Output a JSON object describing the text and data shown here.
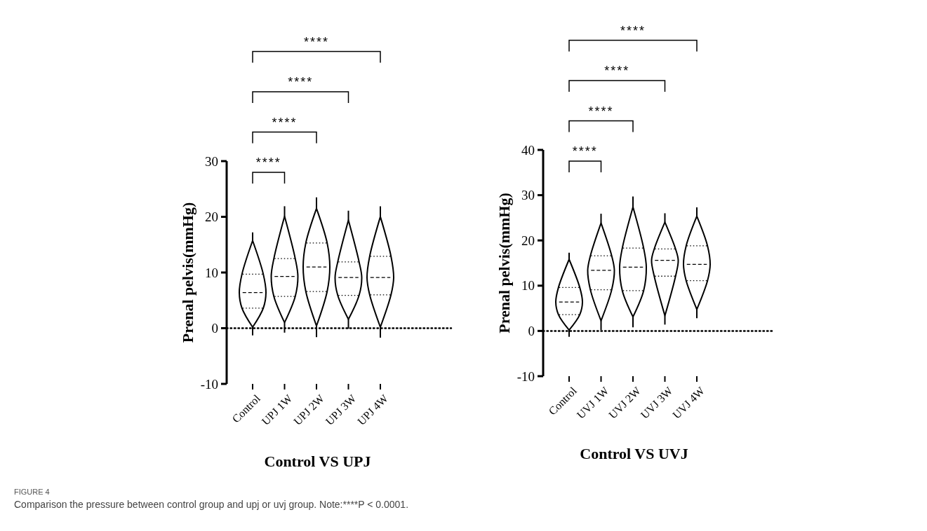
{
  "chart_data": [
    {
      "type": "box",
      "xlabel": "Control VS UPJ",
      "ylabel": "Prenal pelvis(mmHg)",
      "categories": [
        "Control",
        "UPJ 1W",
        "UPJ 2W",
        "UPJ 3W",
        "UPJ 4W"
      ],
      "boxes": [
        {
          "low": -1.3,
          "q1": 3.6,
          "median": 6.4,
          "q3": 9.7,
          "high": 17.2
        },
        {
          "low": -0.8,
          "q1": 5.7,
          "median": 9.3,
          "q3": 12.5,
          "high": 21.9
        },
        {
          "low": -1.6,
          "q1": 6.6,
          "median": 11.0,
          "q3": 15.3,
          "high": 23.5
        },
        {
          "low": -0.1,
          "q1": 5.9,
          "median": 9.1,
          "q3": 11.9,
          "high": 21.1
        },
        {
          "low": -1.7,
          "q1": 6.0,
          "median": 9.1,
          "q3": 12.9,
          "high": 21.9
        }
      ],
      "ylim": [
        -10,
        30
      ],
      "yticks": [
        -10,
        0,
        10,
        20,
        30
      ],
      "ref_lines": [
        {
          "axis": "y",
          "value": 0,
          "line_style": "dotted"
        }
      ],
      "annotations": [
        "****",
        "****",
        "****",
        "****",
        "FIGURE 4",
        "Comparison the pressure between control group and upj or uvj group. Note:****P < 0.0001."
      ]
    },
    {
      "type": "box",
      "xlabel": "Control VS UVJ",
      "ylabel": "Prenal pelvis(mmHg)",
      "categories": [
        "Control",
        "UVJ 1W",
        "UVJ 2W",
        "UVJ 3W",
        "UVJ 4W"
      ],
      "boxes": [
        {
          "low": -1.3,
          "q1": 3.6,
          "median": 6.4,
          "q3": 9.6,
          "high": 17.3
        },
        {
          "low": 0.2,
          "q1": 9.1,
          "median": 13.4,
          "q3": 16.6,
          "high": 25.9
        },
        {
          "low": 0.8,
          "q1": 8.9,
          "median": 14.1,
          "q3": 18.3,
          "high": 29.7
        },
        {
          "low": 1.4,
          "q1": 12.1,
          "median": 15.6,
          "q3": 18.1,
          "high": 26.0
        },
        {
          "low": 2.8,
          "q1": 11.1,
          "median": 14.7,
          "q3": 18.8,
          "high": 27.3
        }
      ],
      "ylim": [
        -10,
        40
      ],
      "yticks": [
        -10,
        0,
        10,
        20,
        30,
        40
      ],
      "ref_lines": [
        {
          "axis": "y",
          "value": 0,
          "line_style": "dotted"
        }
      ],
      "annotations": [
        "****",
        "****",
        "****",
        "****"
      ]
    }
  ]
}
